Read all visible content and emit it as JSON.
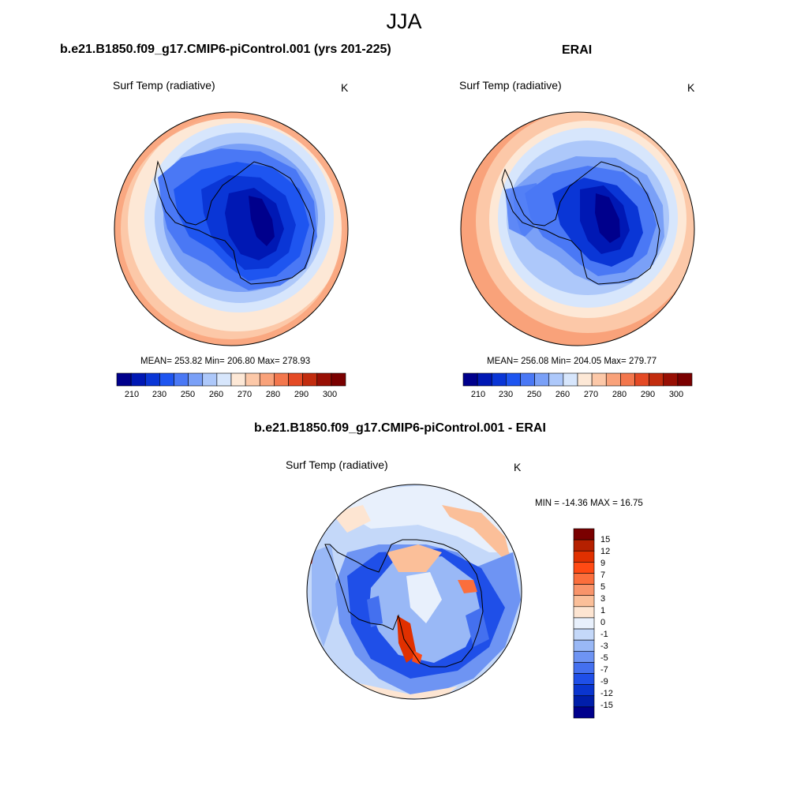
{
  "page_title": "JJA",
  "panels": {
    "model": {
      "title": "b.e21.B1850.f09_g17.CMIP6-piControl.001 (yrs 201-225)",
      "variable": "Surf Temp (radiative)",
      "units": "K",
      "stats": "MEAN= 253.82  Min= 206.80  Max= 278.93"
    },
    "obs": {
      "title": "ERAI",
      "variable": "Surf Temp (radiative)",
      "units": "K",
      "stats": "MEAN= 256.08  Min= 204.05  Max= 279.77"
    },
    "diff": {
      "title": "b.e21.B1850.f09_g17.CMIP6-piControl.001 - ERAI",
      "variable": "Surf Temp (radiative)",
      "units": "K",
      "stats": "MIN = -14.36 MAX =  16.75"
    }
  },
  "colorbars": {
    "absolute": {
      "labels": [
        "210",
        "230",
        "250",
        "260",
        "270",
        "280",
        "290",
        "300"
      ],
      "colors": [
        "#00008c",
        "#0018b4",
        "#0a36d6",
        "#1e55f0",
        "#4a78f5",
        "#7aa0f7",
        "#adc8fa",
        "#d7e6fc",
        "#fde8d6",
        "#fcc8a8",
        "#f9a27a",
        "#f3774d",
        "#e44a25",
        "#c22c0e",
        "#980f04",
        "#7a0000"
      ]
    },
    "difference": {
      "labels": [
        "15",
        "12",
        "9",
        "7",
        "5",
        "3",
        "1",
        "0",
        "-1",
        "-3",
        "-5",
        "-7",
        "-9",
        "-12",
        "-15"
      ],
      "colors": [
        "#7a0000",
        "#b52000",
        "#e03000",
        "#ff4a14",
        "#fb6e3c",
        "#f9946a",
        "#fbbf99",
        "#fde5d2",
        "#e8f0fc",
        "#c4d8f9",
        "#99b8f6",
        "#6e94f3",
        "#4470ef",
        "#1f4fe8",
        "#0a35cf",
        "#001eaa",
        "#00008c"
      ]
    }
  }
}
